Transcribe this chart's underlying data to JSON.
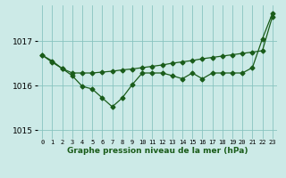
{
  "xlabel": "Graphe pression niveau de la mer (hPa)",
  "background_color": "#cceae7",
  "line_color": "#1a5c1a",
  "grid_color": "#88c4c0",
  "x_values": [
    0,
    1,
    2,
    3,
    4,
    5,
    6,
    7,
    8,
    9,
    10,
    11,
    12,
    13,
    14,
    15,
    16,
    17,
    18,
    19,
    20,
    21,
    22,
    23
  ],
  "line1_y": [
    1016.68,
    1016.55,
    1016.38,
    1016.28,
    1016.28,
    1016.28,
    1016.3,
    1016.32,
    1016.35,
    1016.37,
    1016.4,
    1016.43,
    1016.46,
    1016.5,
    1016.53,
    1016.56,
    1016.6,
    1016.63,
    1016.66,
    1016.69,
    1016.72,
    1016.75,
    1016.78,
    1017.55
  ],
  "line2_y": [
    1016.68,
    1016.52,
    1016.38,
    1016.22,
    1015.98,
    1015.92,
    1015.72,
    1015.52,
    1015.72,
    1016.02,
    1016.28,
    1016.28,
    1016.28,
    1016.22,
    1016.15,
    1016.28,
    1016.15,
    1016.28,
    1016.28,
    1016.28,
    1016.28,
    1016.4,
    1017.05,
    1017.62
  ],
  "ylim": [
    1014.8,
    1017.8
  ],
  "yticks": [
    1015.0,
    1016.0,
    1017.0
  ],
  "xlim": [
    -0.5,
    23.5
  ]
}
